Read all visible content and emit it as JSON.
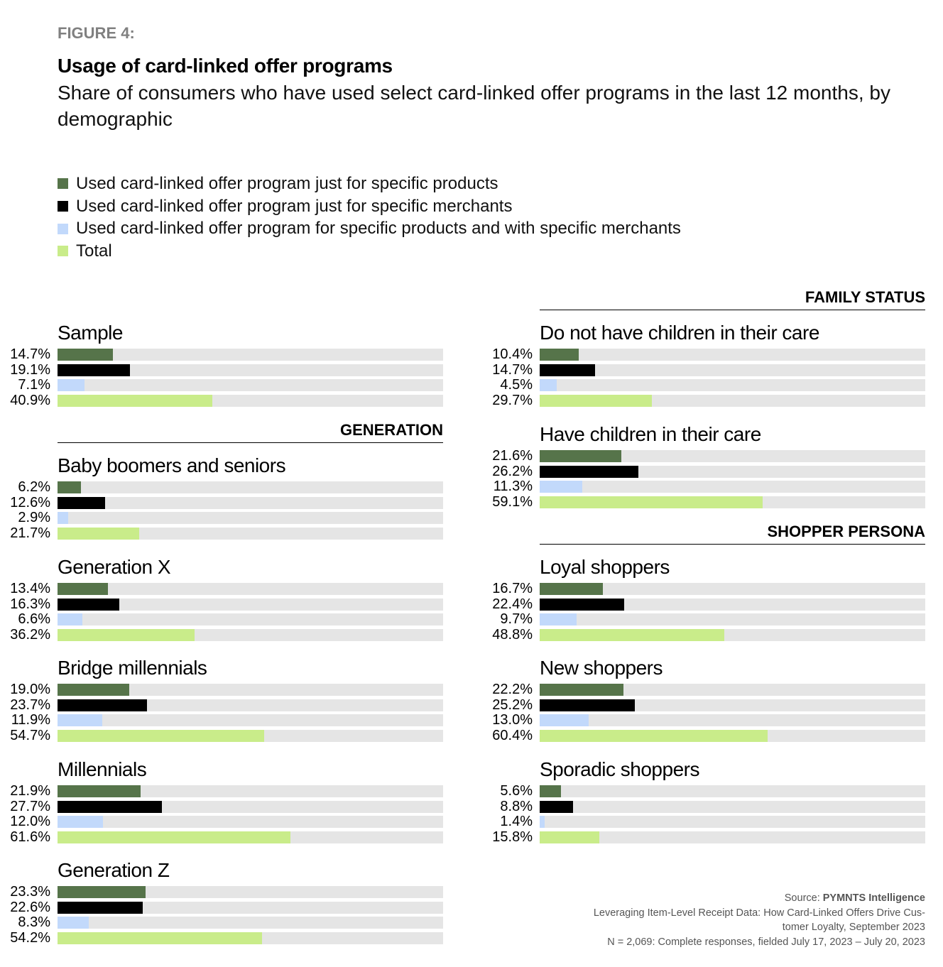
{
  "figure_label": "FIGURE 4:",
  "title": "Usage of card-linked offer programs",
  "subtitle": "Share of consumers who have used select card-linked offer programs in the last 12 months, by demographic",
  "chart_data": {
    "type": "bar",
    "orientation": "horizontal",
    "xlim": [
      0,
      100
    ],
    "unit": "%",
    "series": [
      {
        "name": "Used card-linked offer program just for specific products",
        "color": "#56744a"
      },
      {
        "name": "Used card-linked offer program just for specific merchants",
        "color": "#000000"
      },
      {
        "name": "Used card-linked offer program for specific products and with specific merchants",
        "color": "#c2d9fb"
      },
      {
        "name": "Total",
        "color": "#c9ec8a"
      }
    ],
    "track_color": "#e5e5e5",
    "sections": [
      "GENERATION",
      "FAMILY STATUS",
      "SHOPPER PERSONA"
    ],
    "groups": [
      {
        "label": "Sample",
        "values": [
          14.7,
          19.1,
          7.1,
          40.9
        ],
        "labels": [
          "14.7%",
          "19.1%",
          "7.1%",
          "40.9%"
        ]
      },
      {
        "label": "Baby boomers and seniors",
        "section": "GENERATION",
        "values": [
          6.2,
          12.6,
          2.9,
          21.7
        ],
        "labels": [
          "6.2%",
          "12.6%",
          "2.9%",
          "21.7%"
        ]
      },
      {
        "label": "Generation X",
        "section": "GENERATION",
        "values": [
          13.4,
          16.3,
          6.6,
          36.2
        ],
        "labels": [
          "13.4%",
          "16.3%",
          "6.6%",
          "36.2%"
        ]
      },
      {
        "label": "Bridge millennials",
        "section": "GENERATION",
        "values": [
          19.0,
          23.7,
          11.9,
          54.7
        ],
        "labels": [
          "19.0%",
          "23.7%",
          "11.9%",
          "54.7%"
        ]
      },
      {
        "label": "Millennials",
        "section": "GENERATION",
        "values": [
          21.9,
          27.7,
          12.0,
          61.6
        ],
        "labels": [
          "21.9%",
          "27.7%",
          "12.0%",
          "61.6%"
        ]
      },
      {
        "label": "Generation Z",
        "section": "GENERATION",
        "values": [
          23.3,
          22.6,
          8.3,
          54.2
        ],
        "labels": [
          "23.3%",
          "22.6%",
          "8.3%",
          "54.2%"
        ]
      },
      {
        "label": "Do not have children in their care",
        "section": "FAMILY STATUS",
        "values": [
          10.4,
          14.7,
          4.5,
          29.7
        ],
        "labels": [
          "10.4%",
          "14.7%",
          "4.5%",
          "29.7%"
        ]
      },
      {
        "label": "Have children in their care",
        "section": "FAMILY STATUS",
        "values": [
          21.6,
          26.2,
          11.3,
          59.1
        ],
        "labels": [
          "21.6%",
          "26.2%",
          "11.3%",
          "59.1%"
        ]
      },
      {
        "label": "Loyal shoppers",
        "section": "SHOPPER PERSONA",
        "values": [
          16.7,
          22.4,
          9.7,
          48.8
        ],
        "labels": [
          "16.7%",
          "22.4%",
          "9.7%",
          "48.8%"
        ]
      },
      {
        "label": "New shoppers",
        "section": "SHOPPER PERSONA",
        "values": [
          22.2,
          25.2,
          13.0,
          60.4
        ],
        "labels": [
          "22.2%",
          "25.2%",
          "13.0%",
          "60.4%"
        ]
      },
      {
        "label": "Sporadic shoppers",
        "section": "SHOPPER PERSONA",
        "values": [
          5.6,
          8.8,
          1.4,
          15.8
        ],
        "labels": [
          "5.6%",
          "8.8%",
          "1.4%",
          "15.8%"
        ]
      }
    ]
  },
  "footer": {
    "source_prefix": "Source: ",
    "source_name": "PYMNTS Intelligence",
    "report_line1": "Leveraging Item-Level Receipt Data: How Card-Linked Offers Drive Cus-",
    "report_line2": "tomer Loyalty, September 2023",
    "sample_note": "N = 2,069: Complete responses, fielded July 17, 2023 – July 20, 2023"
  }
}
